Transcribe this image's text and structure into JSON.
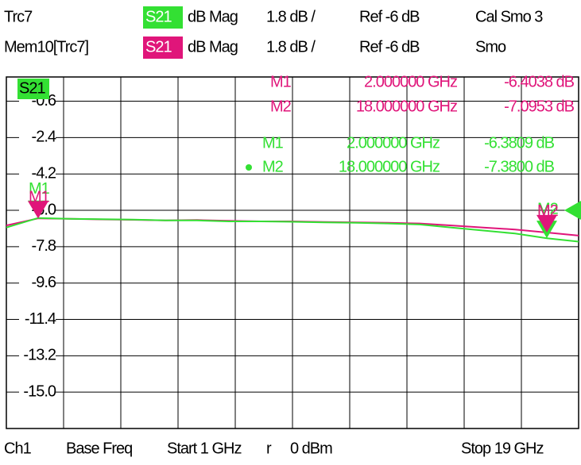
{
  "chart_data": {
    "type": "line",
    "header": [
      {
        "param": "S21",
        "format": "dB Mag",
        "scale": "1.8 dB /",
        "ref": "Ref -6 dB",
        "extra": "Cal Smo 3"
      },
      {
        "param": "S21",
        "format": "dB Mag",
        "scale": "1.8 dB /",
        "ref": "Ref -6 dB",
        "extra": "Smo"
      }
    ],
    "footer": [
      "Ch1",
      "Base Freq",
      "Start 1 GHz",
      "r",
      "0 dBm",
      "Stop 19 GHz"
    ],
    "x": [
      1,
      2,
      3,
      4,
      5,
      6,
      7,
      8,
      9,
      10,
      11,
      12,
      13,
      14,
      15,
      16,
      17,
      18,
      19
    ],
    "series": [
      {
        "name": "Trc7",
        "color": "#33e033",
        "values": [
          -6.85,
          -6.38,
          -6.42,
          -6.44,
          -6.46,
          -6.5,
          -6.5,
          -6.55,
          -6.55,
          -6.57,
          -6.6,
          -6.62,
          -6.65,
          -6.7,
          -6.85,
          -7.0,
          -7.15,
          -7.38,
          -7.55
        ],
        "markers": [
          {
            "name": "M1",
            "x": 2,
            "value": -6.3809,
            "x_label": "2.000000 GHz",
            "value_label": "-6.3809 dB"
          },
          {
            "name": "M2",
            "x": 18,
            "value": -7.38,
            "x_label": "18.000000 GHz",
            "value_label": "-7.3800 dB"
          }
        ]
      },
      {
        "name": "Mem10[Trc7]",
        "color": "#e0157a",
        "values": [
          -6.75,
          -6.4,
          -6.42,
          -6.45,
          -6.47,
          -6.5,
          -6.48,
          -6.52,
          -6.55,
          -6.55,
          -6.58,
          -6.6,
          -6.62,
          -6.65,
          -6.75,
          -6.85,
          -6.95,
          -7.1,
          -7.25
        ],
        "markers": [
          {
            "name": "M1",
            "x": 2,
            "value": -6.4038,
            "x_label": "2.000000 GHz",
            "value_label": "-6.4038 dB"
          },
          {
            "name": "M2",
            "x": 18,
            "value": -7.0953,
            "x_label": "18.000000 GHz",
            "value_label": "-7.0953 dB"
          }
        ]
      }
    ],
    "xlim": [
      1,
      19
    ],
    "xticks": [
      1,
      2.8,
      4.6,
      6.4,
      8.2,
      10,
      11.8,
      13.6,
      15.4,
      17.2,
      19
    ],
    "ylim": [
      -16.8,
      0.6
    ],
    "yticks": [
      -0.6,
      -2.4,
      -4.2,
      {
        "value": -6,
        "label": "-6.0"
      },
      -7.8,
      -9.6,
      -11.4,
      -13.2,
      {
        "value": -15,
        "label": "-15.0"
      }
    ],
    "grid": true
  }
}
